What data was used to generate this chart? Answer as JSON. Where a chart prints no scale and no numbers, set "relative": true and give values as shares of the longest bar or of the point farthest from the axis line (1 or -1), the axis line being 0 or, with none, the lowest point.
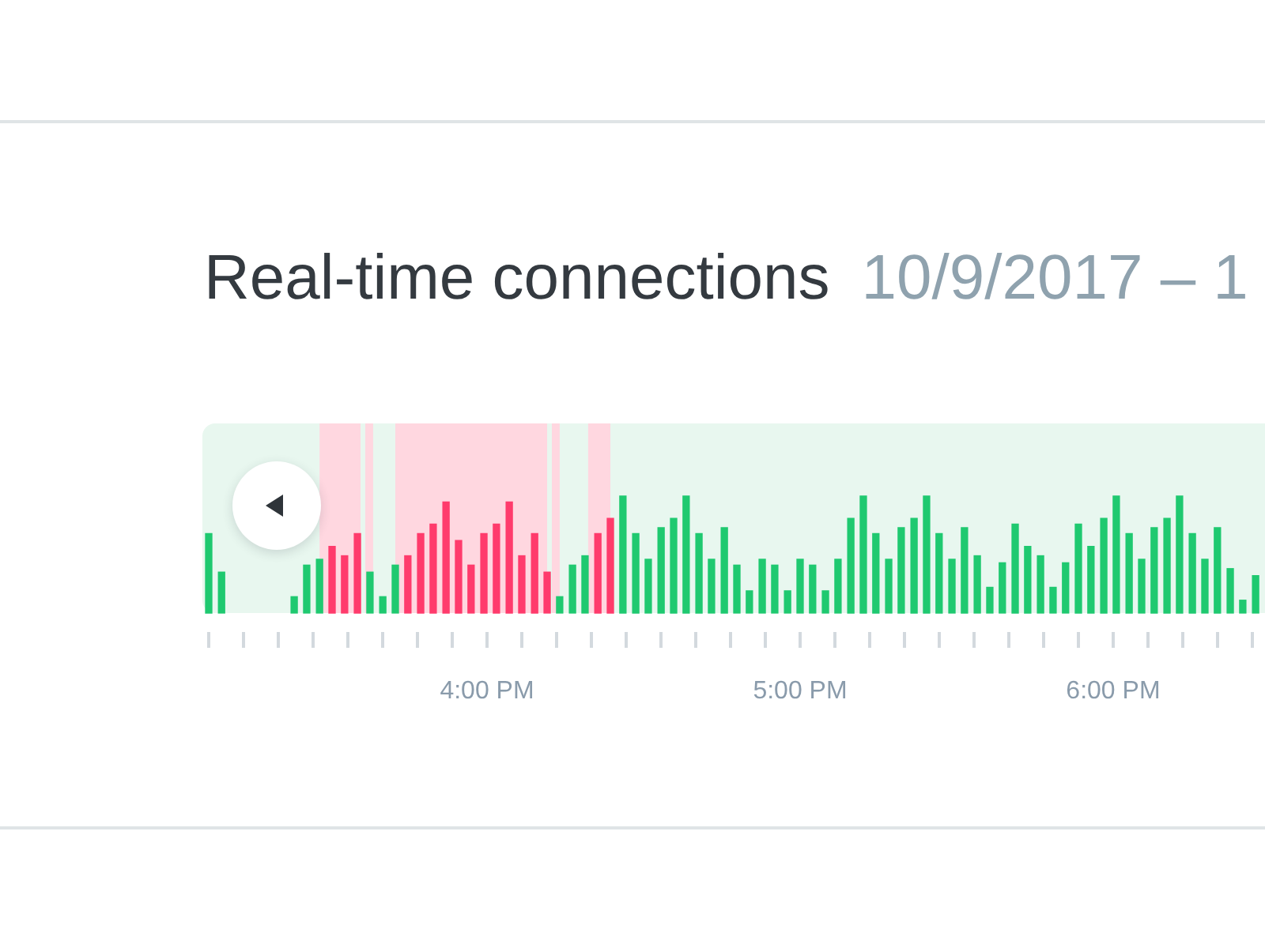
{
  "chart_data": {
    "type": "bar",
    "title": "Real-time connections",
    "subtitle": "10/9/2017 – 1",
    "relative": true,
    "xlim": [
      15.111,
      18.485
    ],
    "xticks": [
      {
        "value": 15.111,
        "label": null
      },
      {
        "value": 15.222,
        "label": null
      },
      {
        "value": 15.333,
        "label": null
      },
      {
        "value": 15.444,
        "label": null
      },
      {
        "value": 15.556,
        "label": null
      },
      {
        "value": 15.667,
        "label": null
      },
      {
        "value": 15.778,
        "label": null
      },
      {
        "value": 15.889,
        "label": null
      },
      {
        "value": 16,
        "label": "4:00 PM"
      },
      {
        "value": 16.111,
        "label": null
      },
      {
        "value": 16.222,
        "label": null
      },
      {
        "value": 16.333,
        "label": null
      },
      {
        "value": 16.444,
        "label": null
      },
      {
        "value": 16.556,
        "label": null
      },
      {
        "value": 16.667,
        "label": null
      },
      {
        "value": 16.778,
        "label": null
      },
      {
        "value": 16.889,
        "label": null
      },
      {
        "value": 17,
        "label": "5:00 PM"
      },
      {
        "value": 17.111,
        "label": null
      },
      {
        "value": 17.222,
        "label": null
      },
      {
        "value": 17.333,
        "label": null
      },
      {
        "value": 17.444,
        "label": null
      },
      {
        "value": 17.556,
        "label": null
      },
      {
        "value": 17.667,
        "label": null
      },
      {
        "value": 17.778,
        "label": null
      },
      {
        "value": 17.889,
        "label": null
      },
      {
        "value": 18,
        "label": "6:00 PM"
      },
      {
        "value": 18.111,
        "label": null
      },
      {
        "value": 18.222,
        "label": null
      },
      {
        "value": 18.333,
        "label": null
      },
      {
        "value": 18.444,
        "label": null
      }
    ],
    "bands": [
      {
        "axis": "x",
        "from": 15.465,
        "to": 15.596,
        "color": "#ffd7e0"
      },
      {
        "axis": "x",
        "from": 15.611,
        "to": 15.636,
        "color": "#ffd7e0"
      },
      {
        "axis": "x",
        "from": 15.707,
        "to": 16.192,
        "color": "#ffd7e0"
      },
      {
        "axis": "x",
        "from": 16.207,
        "to": 16.232,
        "color": "#ffd7e0"
      },
      {
        "axis": "x",
        "from": 16.323,
        "to": 16.394,
        "color": "#ffd7e0"
      }
    ],
    "series": [
      {
        "color": "#1fc970",
        "x": [
          15.111,
          15.152,
          15.384,
          15.424,
          15.465,
          15.626,
          15.667,
          15.707,
          16.232,
          16.273,
          16.313,
          16.434,
          16.475,
          16.515,
          16.556,
          16.596,
          16.636,
          16.677,
          16.717,
          16.758,
          16.798,
          16.838,
          16.879,
          16.919,
          16.96,
          17,
          17.04,
          17.081,
          17.121,
          17.162,
          17.202,
          17.242,
          17.283,
          17.323,
          17.364,
          17.404,
          17.444,
          17.485,
          17.525,
          17.566,
          17.606,
          17.646,
          17.687,
          17.727,
          17.768,
          17.808,
          17.848,
          17.889,
          17.929,
          17.97,
          18.01,
          18.051,
          18.091,
          18.131,
          18.172,
          18.212,
          18.253,
          18.293,
          18.333,
          18.374,
          18.414,
          18.455
        ],
        "values": [
          0.68,
          0.35,
          0.14,
          0.41,
          0.46,
          0.35,
          0.14,
          0.41,
          0.14,
          0.41,
          0.49,
          1,
          0.68,
          0.46,
          0.73,
          0.81,
          1,
          0.68,
          0.46,
          0.73,
          0.41,
          0.19,
          0.46,
          0.41,
          0.19,
          0.46,
          0.41,
          0.19,
          0.46,
          0.81,
          1,
          0.68,
          0.46,
          0.73,
          0.81,
          1,
          0.68,
          0.46,
          0.73,
          0.49,
          0.22,
          0.43,
          0.76,
          0.57,
          0.49,
          0.22,
          0.43,
          0.76,
          0.57,
          0.81,
          1,
          0.68,
          0.46,
          0.73,
          0.81,
          1,
          0.68,
          0.46,
          0.73,
          0.38,
          0.11,
          0.32
        ]
      },
      {
        "color": "#ff3b6c",
        "x": [
          15.505,
          15.545,
          15.586,
          15.747,
          15.788,
          15.828,
          15.869,
          15.909,
          15.949,
          15.99,
          16.03,
          16.071,
          16.111,
          16.152,
          16.192,
          16.354,
          16.394
        ],
        "values": [
          0.57,
          0.49,
          0.68,
          0.49,
          0.68,
          0.76,
          0.95,
          0.62,
          0.41,
          0.68,
          0.76,
          0.95,
          0.49,
          0.68,
          0.35,
          0.68,
          0.81
        ]
      }
    ]
  }
}
